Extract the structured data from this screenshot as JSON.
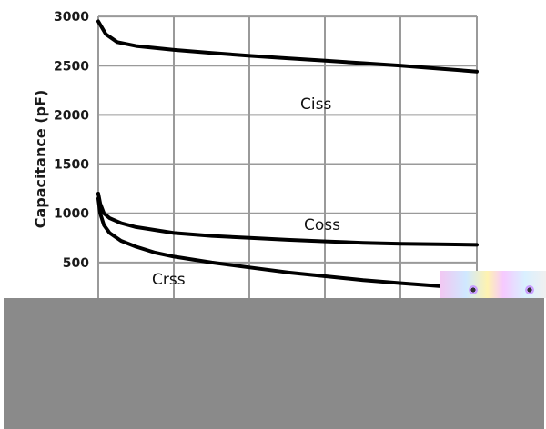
{
  "chart_data": {
    "type": "line",
    "ylabel": "Capacitance (pF)",
    "ylim": [
      0,
      3000
    ],
    "yticks": [
      "3000",
      "2500",
      "2000",
      "1500",
      "1000",
      "500"
    ],
    "grid": true,
    "series": [
      {
        "name": "Ciss",
        "x": [
          0,
          0.2,
          0.5,
          1,
          1.5,
          2,
          3,
          4,
          5,
          6,
          7,
          8,
          9,
          10
        ],
        "values": [
          2950,
          2820,
          2740,
          2700,
          2680,
          2660,
          2630,
          2600,
          2575,
          2550,
          2525,
          2500,
          2470,
          2440
        ]
      },
      {
        "name": "Coss",
        "x": [
          0,
          0.05,
          0.15,
          0.3,
          0.6,
          1,
          1.5,
          2,
          3,
          4,
          5,
          6,
          7,
          8,
          9,
          10
        ],
        "values": [
          1200,
          1100,
          1000,
          950,
          900,
          860,
          830,
          800,
          770,
          750,
          730,
          715,
          700,
          690,
          685,
          680
        ]
      },
      {
        "name": "Crss",
        "x": [
          0,
          0.05,
          0.15,
          0.3,
          0.6,
          1,
          1.5,
          2,
          3,
          4,
          5,
          6,
          7,
          8,
          9,
          10
        ],
        "values": [
          1150,
          1000,
          880,
          800,
          720,
          660,
          600,
          560,
          500,
          450,
          400,
          360,
          320,
          290,
          260,
          240
        ]
      }
    ]
  }
}
